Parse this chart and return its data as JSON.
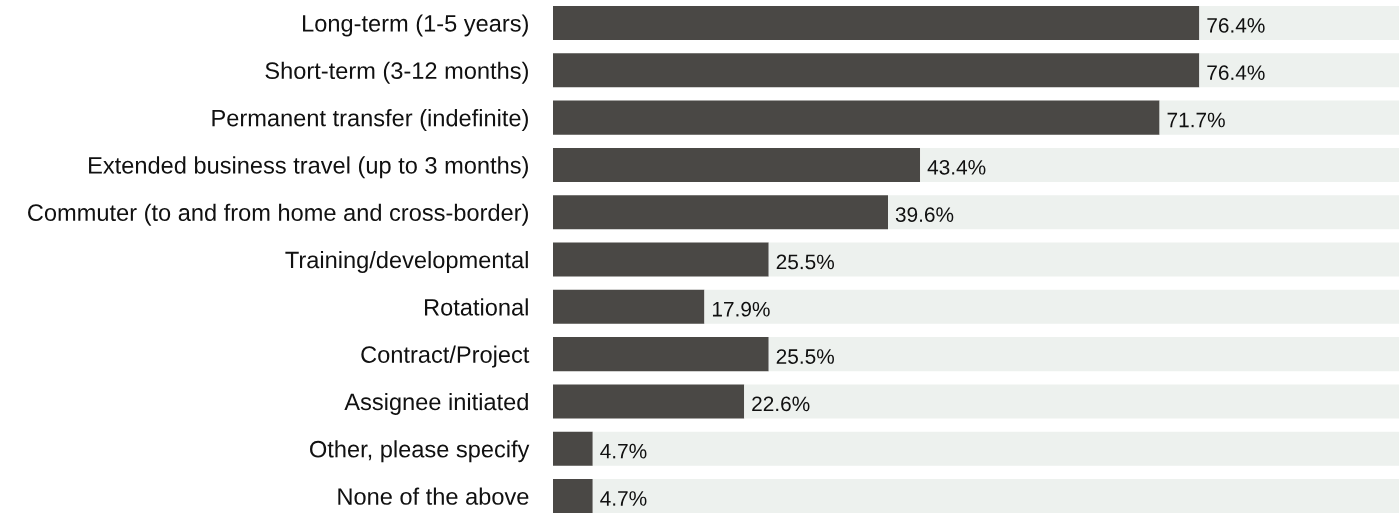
{
  "chart_data": {
    "type": "bar",
    "orientation": "horizontal",
    "stacked": true,
    "categories": [
      "Long-term (1-5 years)",
      "Short-term (3-12 months)",
      "Permanent transfer (indefinite)",
      "Extended business travel (up to 3 months)",
      "Commuter (to and from home and cross-border)",
      "Training/developmental",
      "Rotational",
      "Contract/Project",
      "Assignee initiated",
      "Other, please specify",
      "None of the above"
    ],
    "series": [
      {
        "color": "#4a4845",
        "values": [
          76.4,
          76.4,
          71.7,
          43.4,
          39.6,
          25.5,
          17.9,
          25.5,
          22.6,
          4.7,
          4.7
        ],
        "value_labels": [
          "76.4%",
          "76.4%",
          "71.7%",
          "43.4%",
          "39.6%",
          "25.5%",
          "17.9%",
          "25.5%",
          "22.6%",
          "4.7%",
          "4.7%"
        ]
      },
      {
        "color": "#edf1ee",
        "values": [
          23.6,
          23.6,
          28.3,
          56.6,
          60.4,
          74.5,
          82.1,
          74.5,
          77.4,
          95.3,
          95.3
        ]
      }
    ],
    "xlim": [
      0,
      100
    ],
    "tick_labels": "y",
    "grid": false,
    "legend": false
  }
}
